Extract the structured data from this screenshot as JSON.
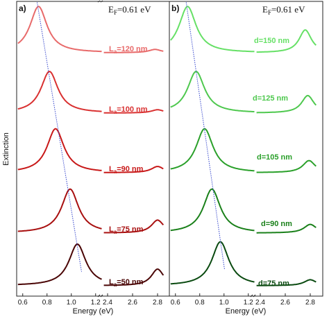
{
  "chart_data": {
    "type": "line",
    "ylabel": "Extinction",
    "xlabel": "Energy (eV)",
    "x_break": [
      1.25,
      2.35
    ],
    "xlim": [
      0.55,
      2.85
    ],
    "x_ticks": [
      "0.6",
      "0.8",
      "1.0",
      "1.2",
      "2.4",
      "2.6",
      "2.8"
    ],
    "x_tick_values": [
      0.6,
      0.8,
      1.0,
      1.2,
      2.4,
      2.6,
      2.8
    ],
    "y_ticks": "none",
    "panels": [
      {
        "panel_label": "a)",
        "fermi_label": "E",
        "fermi_sub": "F",
        "fermi_value": "=0.61 eV",
        "trend_line": "dotted blue through main peaks",
        "series": [
          {
            "label_main": "L",
            "label_sub": "a",
            "label_value": "=120 nm",
            "color": "#e86a6a",
            "peak1_energy": 0.73,
            "peak1_height": 1.0,
            "peak2_energy": 2.78,
            "peak2_height": 0.12
          },
          {
            "label_main": "L",
            "label_sub": "a",
            "label_value": "=100 nm",
            "color": "#d93030",
            "peak1_energy": 0.82,
            "peak1_height": 0.9,
            "peak2_energy": 2.8,
            "peak2_height": 0.12
          },
          {
            "label_main": "L",
            "label_sub": "a",
            "label_value": "=90 nm",
            "color": "#c81818",
            "peak1_energy": 0.87,
            "peak1_height": 0.95,
            "peak2_energy": 2.8,
            "peak2_height": 0.23
          },
          {
            "label_main": "L",
            "label_sub": "a",
            "label_value": "=75 nm",
            "color": "#a80f0f",
            "peak1_energy": 0.99,
            "peak1_height": 0.95,
            "peak2_energy": 2.8,
            "peak2_height": 0.48
          },
          {
            "label_main": "L",
            "label_sub": "a",
            "label_value": "=50 nm",
            "color": "#4a0505",
            "peak1_energy": 1.05,
            "peak1_height": 0.9,
            "peak2_energy": 2.8,
            "peak2_height": 0.62
          }
        ]
      },
      {
        "panel_label": "b)",
        "fermi_label": "E",
        "fermi_sub": "F",
        "fermi_value": "=0.61 eV",
        "trend_line": "dotted blue through main peaks",
        "series": [
          {
            "label": "d=150 nm",
            "color": "#66e066",
            "peak1_energy": 0.7,
            "peak1_height": 1.0,
            "peak2_energy": 2.76,
            "peak2_height": 0.85
          },
          {
            "label": "d=125 nm",
            "color": "#4ec84e",
            "peak1_energy": 0.77,
            "peak1_height": 0.9,
            "peak2_energy": 2.78,
            "peak2_height": 0.65
          },
          {
            "label": "d=105 nm",
            "color": "#2aa02a",
            "peak1_energy": 0.84,
            "peak1_height": 0.95,
            "peak2_energy": 2.79,
            "peak2_height": 0.45
          },
          {
            "label": "d=90 nm",
            "color": "#1a801a",
            "peak1_energy": 0.9,
            "peak1_height": 0.95,
            "peak2_energy": 2.8,
            "peak2_height": 0.32
          },
          {
            "label": "d=75 nm",
            "color": "#0a4a10",
            "peak1_energy": 0.97,
            "peak1_height": 0.95,
            "peak2_energy": 2.8,
            "peak2_height": 0.22
          }
        ]
      }
    ]
  }
}
